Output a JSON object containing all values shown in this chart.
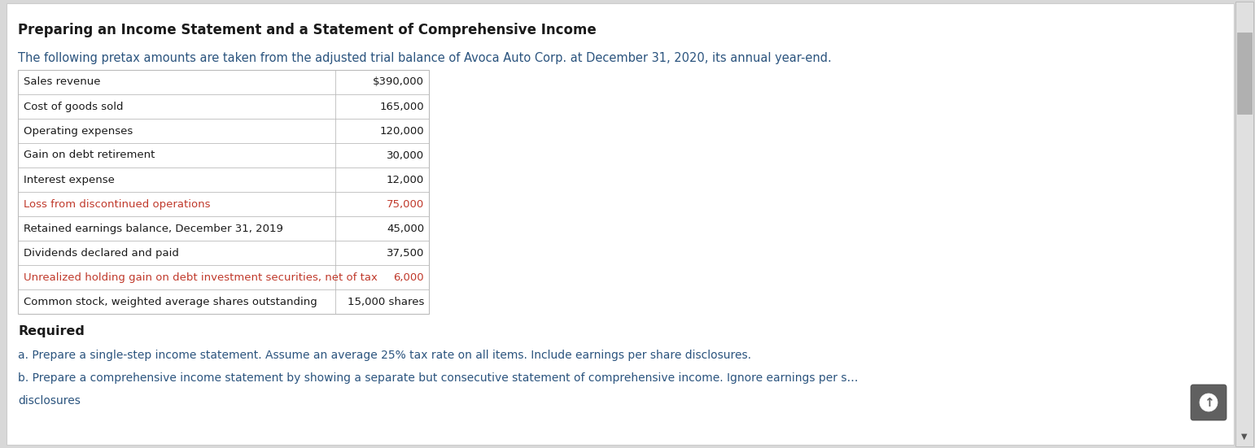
{
  "title": "Preparing an Income Statement and a Statement of Comprehensive Income",
  "subtitle": "The following pretax amounts are taken from the adjusted trial balance of Avoca Auto Corp. at December 31, 2020, its annual year-end.",
  "table_rows": [
    [
      "Sales revenue",
      "$390,000"
    ],
    [
      "Cost of goods sold",
      "165,000"
    ],
    [
      "Operating expenses",
      "120,000"
    ],
    [
      "Gain on debt retirement",
      "30,000"
    ],
    [
      "Interest expense",
      "12,000"
    ],
    [
      "Loss from discontinued operations",
      "75,000"
    ],
    [
      "Retained earnings balance, December 31, 2019",
      "45,000"
    ],
    [
      "Dividends declared and paid",
      "37,500"
    ],
    [
      "Unrealized holding gain on debt investment securities, net of tax",
      "6,000"
    ],
    [
      "Common stock, weighted average shares outstanding",
      "15,000 shares"
    ]
  ],
  "highlighted_rows": [
    5,
    8
  ],
  "required_label": "Required",
  "note_a": "a. Prepare a single-step income statement. Assume an average 25% tax rate on all items. Include earnings per share disclosures.",
  "note_b": "b. Prepare a comprehensive income statement by showing a separate but consecutive statement of comprehensive income. Ignore earnings per s…",
  "note_b2": "disclosures",
  "bg_color": "#d8d8d8",
  "panel_color": "#ffffff",
  "panel_border_color": "#cccccc",
  "table_border_color": "#bbbbbb",
  "highlight_text_color": "#c0392b",
  "normal_text_color": "#1a1a1a",
  "title_color": "#1a1a1a",
  "subtitle_color": "#2b547e",
  "note_color": "#2b547e",
  "scrollbar_bg": "#e0e0e0",
  "scrollbar_thumb": "#b0b0b0",
  "scroll_btn_color": "#606060",
  "fig_width": 15.42,
  "fig_height": 5.51,
  "dpi": 100
}
